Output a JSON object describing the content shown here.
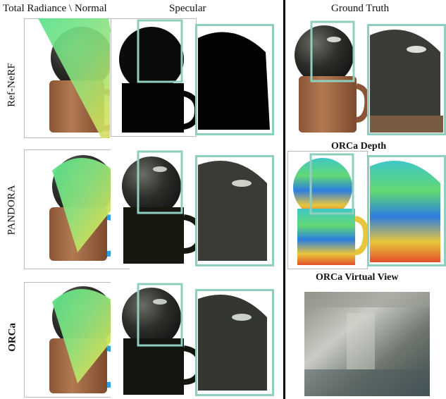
{
  "header": {
    "col1": "Total Radiance \\ Normal",
    "col2": "Specular",
    "col3": "Ground Truth"
  },
  "rows": [
    "Ref-NeRF",
    "PANDORA",
    "ORCa"
  ],
  "captions": {
    "depth": "ORCa Depth",
    "virtual_view": "ORCa Virtual View"
  },
  "colors": {
    "highlight_box": "#8ecfc0",
    "mug": "#a9714a",
    "divider": "#000000"
  }
}
